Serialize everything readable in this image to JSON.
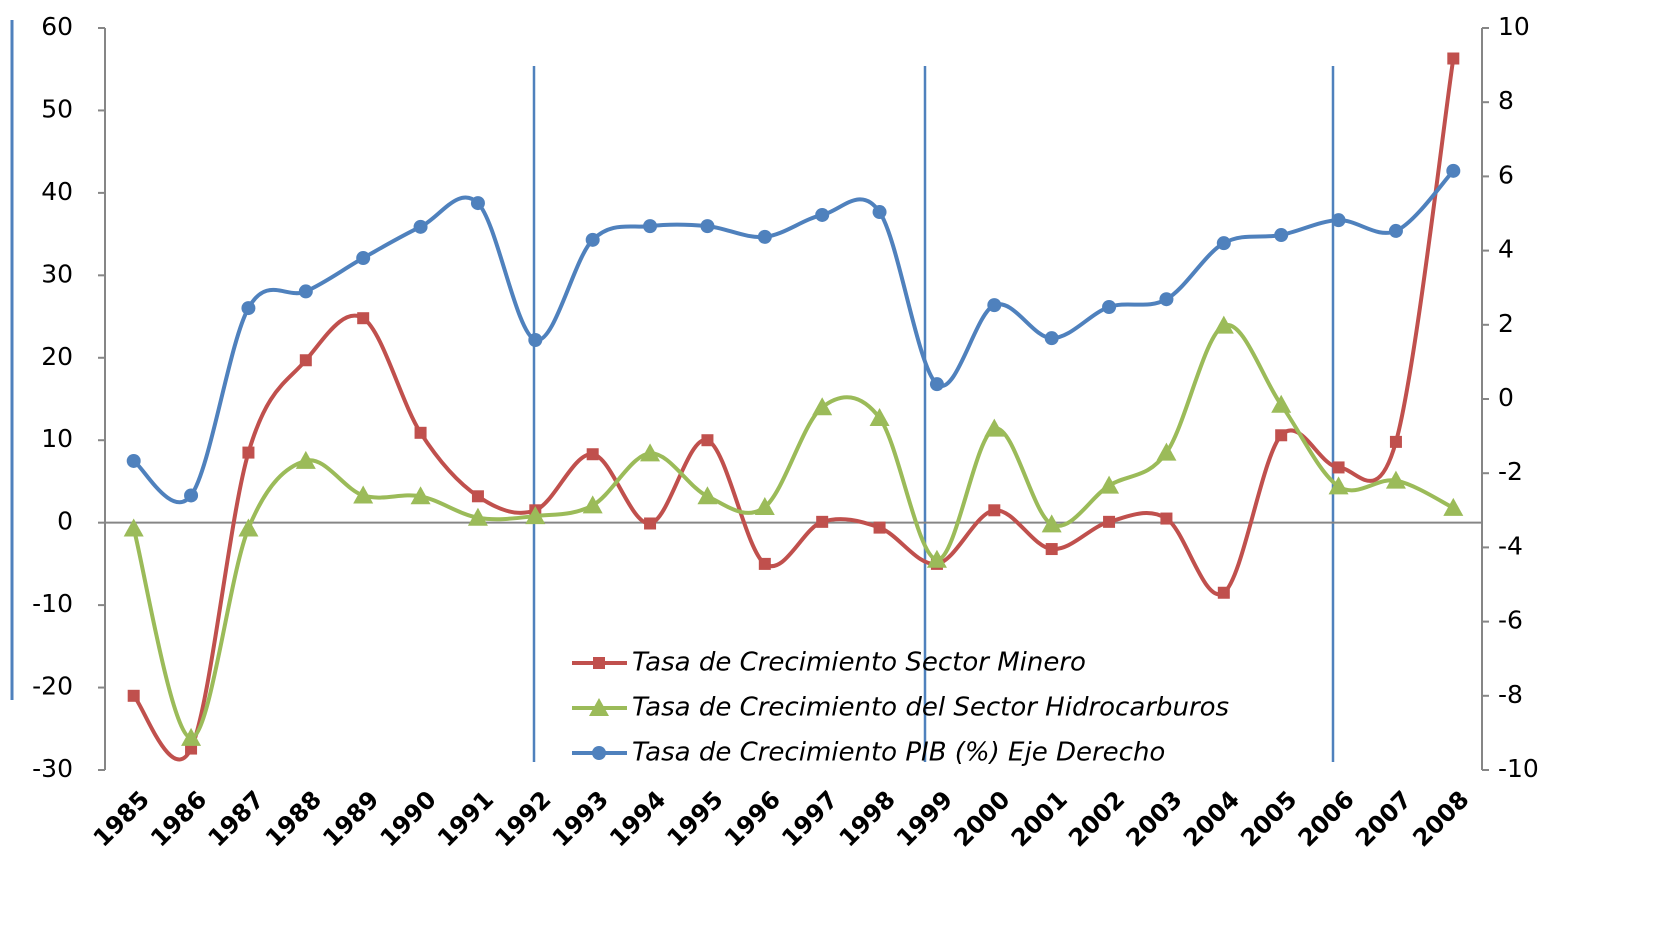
{
  "chart_data": {
    "type": "line",
    "categories": [
      "1985",
      "1986",
      "1987",
      "1988",
      "1989",
      "1990",
      "1991",
      "1992",
      "1993",
      "1994",
      "1995",
      "1996",
      "1997",
      "1998",
      "1999",
      "2000",
      "2001",
      "2002",
      "2003",
      "2004",
      "2005",
      "2006",
      "2007",
      "2008"
    ],
    "series": [
      {
        "name": "Tasa de Crecimiento Sector Minero",
        "color": "#c0504d",
        "marker": "square",
        "values": [
          -21.0,
          -27.4,
          8.5,
          19.7,
          24.8,
          10.9,
          3.2,
          1.5,
          8.3,
          -0.1,
          10.0,
          -5.0,
          0.1,
          -0.6,
          -5.0,
          1.5,
          -3.2,
          0.1,
          0.5,
          -8.5,
          10.6,
          6.7,
          9.8,
          56.3
        ]
      },
      {
        "name": "Tasa de Crecimiento del Sector Hidrocarburos",
        "color": "#9bbb59",
        "marker": "triangle",
        "values": [
          -0.7,
          -26.1,
          -0.7,
          7.5,
          3.3,
          3.2,
          0.6,
          0.8,
          2.1,
          8.4,
          3.2,
          1.9,
          14.0,
          12.7,
          -4.5,
          11.4,
          -0.2,
          4.5,
          8.5,
          23.9,
          14.3,
          4.4,
          5.1,
          1.8
        ]
      },
      {
        "name": "Tasa de Crecimiento PIB (%) Eje Derecho",
        "color": "#4f81bd",
        "marker": "circle",
        "axis": "y2",
        "values": [
          -1.67,
          -2.6,
          2.45,
          2.9,
          3.8,
          4.64,
          5.28,
          1.59,
          4.29,
          4.66,
          4.66,
          4.37,
          4.96,
          5.04,
          0.4,
          2.53,
          1.64,
          2.48,
          2.69,
          4.2,
          4.42,
          4.82,
          4.53,
          6.15
        ]
      }
    ],
    "ylim": [
      -30,
      60
    ],
    "yticks": [
      -30,
      -20,
      -10,
      0,
      10,
      20,
      30,
      40,
      50,
      60
    ],
    "y2lim": [
      -10,
      10
    ],
    "y2ticks": [
      -10,
      -8,
      -6,
      -4,
      -2,
      0,
      2,
      4,
      6,
      8,
      10
    ],
    "smooth": true
  }
}
